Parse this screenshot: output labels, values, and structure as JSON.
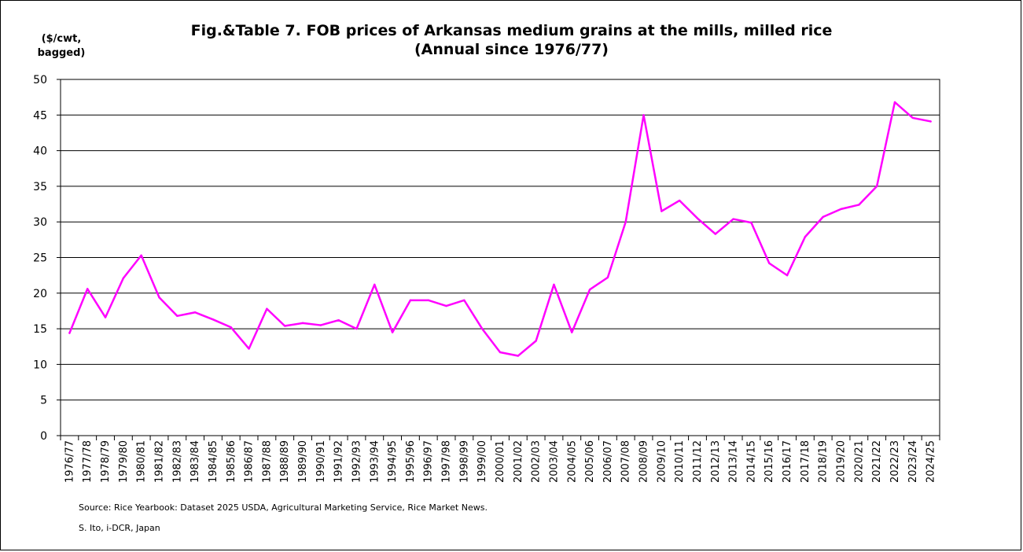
{
  "chart_data": {
    "type": "line",
    "title": "Fig.&Table 7. FOB prices of Arkansas medium grains at the mills, milled rice",
    "subtitle": "(Annual since 1976/77)",
    "ylabel_line1": "($/cwt,",
    "ylabel_line2": "bagged)",
    "xlabel": "",
    "ylim": [
      0,
      50
    ],
    "yticks": [
      0,
      5,
      10,
      15,
      20,
      25,
      30,
      35,
      40,
      45,
      50
    ],
    "grid": true,
    "categories": [
      "1976/77",
      "1977/78",
      "1978/79",
      "1979/80",
      "1980/81",
      "1981/82",
      "1982/83",
      "1983/84",
      "1984/85",
      "1985/86",
      "1986/87",
      "1987/88",
      "1988/89",
      "1989/90",
      "1990/91",
      "1991/92",
      "1992/93",
      "1993/94",
      "1994/95",
      "1995/96",
      "1996/97",
      "1997/98",
      "1998/99",
      "1999/00",
      "2000/01",
      "2001/02",
      "2002/03",
      "2003/04",
      "2004/05",
      "2005/06",
      "2006/07",
      "2007/08",
      "2008/09",
      "2009/10",
      "2010/11",
      "2011/12",
      "2012/13",
      "2013/14",
      "2014/15",
      "2015/16",
      "2016/17",
      "2017/18",
      "2018/19",
      "2019/20",
      "2020/21",
      "2021/22",
      "2022/23",
      "2023/24",
      "2024/25"
    ],
    "series": [
      {
        "name": "",
        "color": "#ff00ff",
        "values": [
          14.4,
          20.6,
          16.6,
          22.1,
          25.3,
          19.4,
          16.8,
          17.3,
          16.3,
          15.2,
          12.2,
          17.8,
          15.4,
          15.8,
          15.5,
          16.2,
          15.0,
          21.2,
          14.5,
          19.0,
          19.0,
          18.2,
          19.0,
          15.0,
          11.7,
          11.2,
          13.3,
          21.2,
          14.5,
          20.5,
          22.2,
          30.0,
          45.0,
          31.5,
          33.0,
          30.5,
          28.3,
          30.4,
          29.9,
          24.2,
          22.5,
          27.9,
          30.7,
          31.8,
          32.4,
          35.0,
          46.8,
          44.6,
          44.1
        ]
      }
    ]
  },
  "source": "Source:  Rice Yearbook: Dataset 2025 USDA, Agricultural Marketing Service, Rice Market News.",
  "credit": "S. Ito, i-DCR, Japan"
}
